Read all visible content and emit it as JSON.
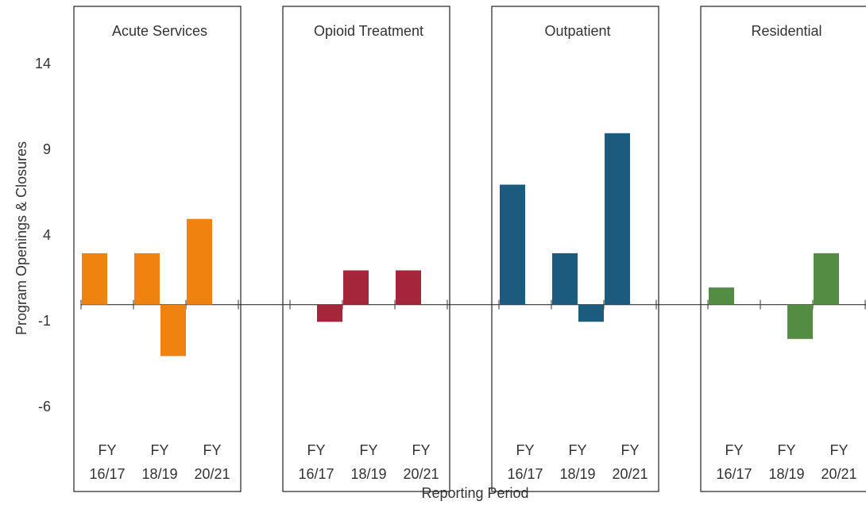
{
  "chart_data": {
    "type": "bar",
    "y_label": "Program Openings & Closures",
    "x_label": "Reporting Period",
    "ylim": [
      -10.9,
      17.4
    ],
    "yticks": [
      -6,
      -1,
      4,
      9,
      14
    ],
    "panels": [
      {
        "title": "Acute Services",
        "categories": [
          "FY 16/17",
          "FY 18/19",
          "FY 20/21"
        ],
        "color": "#f0820f",
        "series": [
          {
            "values": [
              3,
              3,
              5
            ]
          },
          {
            "values": [
              0,
              -3,
              0
            ]
          }
        ]
      },
      {
        "title": "Opioid Treatment",
        "categories": [
          "FY 16/17",
          "FY 18/19",
          "FY 20/21"
        ],
        "color": "#a5263a",
        "series": [
          {
            "values": [
              0,
              2,
              2
            ]
          },
          {
            "values": [
              -1,
              0,
              0
            ]
          }
        ]
      },
      {
        "title": "Outpatient",
        "categories": [
          "FY 16/17",
          "FY 18/19",
          "FY 20/21"
        ],
        "color": "#1c5a7e",
        "series": [
          {
            "values": [
              7,
              3,
              10
            ]
          },
          {
            "values": [
              0,
              -1,
              0
            ]
          }
        ]
      },
      {
        "title": "Residential",
        "categories": [
          "FY 16/17",
          "FY 18/19",
          "FY 20/21"
        ],
        "color": "#538d43",
        "series": [
          {
            "values": [
              1,
              0,
              3
            ]
          },
          {
            "values": [
              0,
              -2,
              0
            ]
          }
        ]
      }
    ]
  }
}
